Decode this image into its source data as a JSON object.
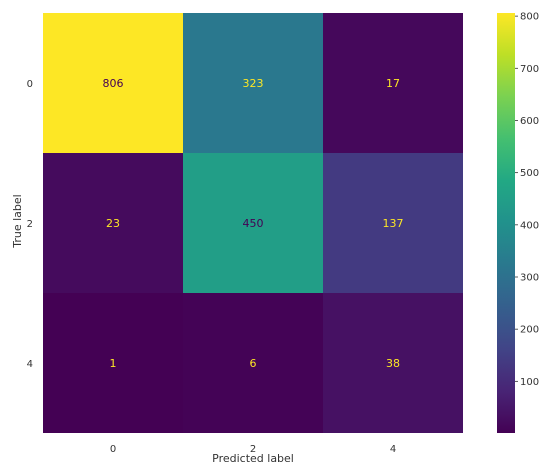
{
  "chart_data": {
    "type": "heatmap",
    "title": "",
    "xlabel": "Predicted label",
    "ylabel": "True label",
    "x_categories": [
      "0",
      "2",
      "4"
    ],
    "y_categories": [
      "0",
      "2",
      "4"
    ],
    "values": [
      [
        806,
        323,
        17
      ],
      [
        23,
        450,
        137
      ],
      [
        1,
        6,
        38
      ]
    ],
    "colormap": "viridis",
    "colorbar": {
      "range": [
        1,
        806
      ],
      "ticks": [
        100,
        200,
        300,
        400,
        500,
        600,
        700,
        800
      ],
      "tick_labels": [
        "100",
        "200",
        "300",
        "400",
        "500",
        "600",
        "700",
        "800"
      ]
    },
    "grid": false,
    "annotation_colors": {
      "on_light": "#440154",
      "on_dark": "#fde725"
    }
  }
}
